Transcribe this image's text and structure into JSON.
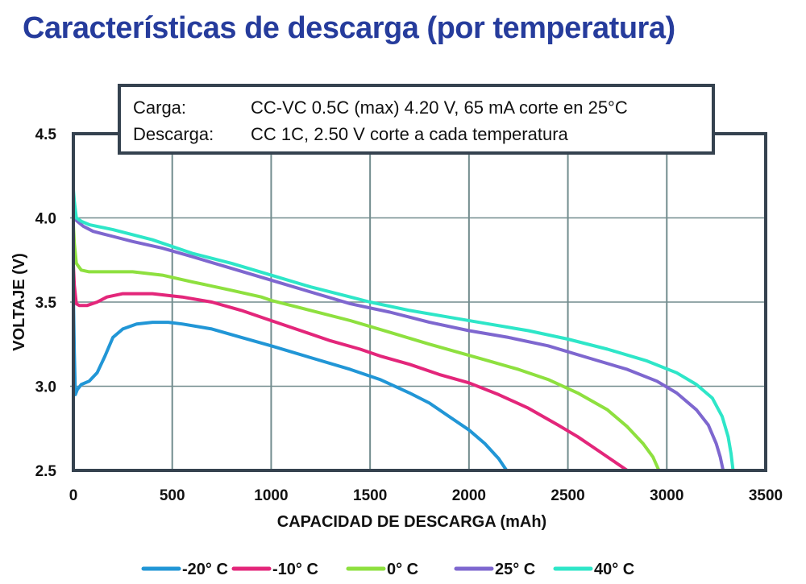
{
  "page_title": "Características de descarga (por temperatura)",
  "conditions": {
    "rows": [
      {
        "label": "Carga:",
        "value": "CC-VC 0.5C (max) 4.20 V, 65 mA corte en 25°C"
      },
      {
        "label": "Descarga:",
        "value": "CC 1C, 2.50 V corte a cada temperatura"
      }
    ]
  },
  "chart_data": {
    "type": "line",
    "title": "Características de descarga (por temperatura)",
    "xlabel": "CAPACIDAD DE DESCARGA (mAh)",
    "ylabel": "VOLTAJE (V)",
    "xlim": [
      0,
      3500
    ],
    "ylim": [
      2.5,
      4.5
    ],
    "xticks": [
      "0",
      "500",
      "1000",
      "1500",
      "2000",
      "2500",
      "3000",
      "3500"
    ],
    "xtick_values": [
      0,
      500,
      1000,
      1500,
      2000,
      2500,
      3000,
      3500
    ],
    "yticks": [
      "2.5",
      "3.0",
      "3.5",
      "4.0",
      "4.5"
    ],
    "ytick_values": [
      2.5,
      3.0,
      3.5,
      4.0,
      4.5
    ],
    "grid": true,
    "legend_position": "bottom",
    "series": [
      {
        "name": "-20° C",
        "color": "#2196d6",
        "points": [
          [
            0,
            3.55
          ],
          [
            5,
            3.2
          ],
          [
            10,
            2.95
          ],
          [
            20,
            2.98
          ],
          [
            40,
            3.01
          ],
          [
            80,
            3.03
          ],
          [
            120,
            3.08
          ],
          [
            160,
            3.18
          ],
          [
            200,
            3.29
          ],
          [
            250,
            3.34
          ],
          [
            320,
            3.37
          ],
          [
            400,
            3.38
          ],
          [
            480,
            3.38
          ],
          [
            550,
            3.37
          ],
          [
            700,
            3.34
          ],
          [
            850,
            3.29
          ],
          [
            1000,
            3.24
          ],
          [
            1200,
            3.17
          ],
          [
            1400,
            3.1
          ],
          [
            1550,
            3.04
          ],
          [
            1700,
            2.96
          ],
          [
            1800,
            2.9
          ],
          [
            1900,
            2.82
          ],
          [
            2000,
            2.74
          ],
          [
            2080,
            2.66
          ],
          [
            2150,
            2.57
          ],
          [
            2190,
            2.5
          ]
        ]
      },
      {
        "name": "-10° C",
        "color": "#e3267a",
        "points": [
          [
            0,
            3.72
          ],
          [
            5,
            3.6
          ],
          [
            15,
            3.49
          ],
          [
            30,
            3.48
          ],
          [
            70,
            3.48
          ],
          [
            120,
            3.5
          ],
          [
            170,
            3.53
          ],
          [
            250,
            3.55
          ],
          [
            400,
            3.55
          ],
          [
            550,
            3.53
          ],
          [
            700,
            3.5
          ],
          [
            850,
            3.45
          ],
          [
            1000,
            3.39
          ],
          [
            1150,
            3.33
          ],
          [
            1300,
            3.27
          ],
          [
            1450,
            3.22
          ],
          [
            1550,
            3.18
          ],
          [
            1700,
            3.13
          ],
          [
            1850,
            3.07
          ],
          [
            2000,
            3.02
          ],
          [
            2150,
            2.95
          ],
          [
            2300,
            2.87
          ],
          [
            2450,
            2.77
          ],
          [
            2550,
            2.7
          ],
          [
            2650,
            2.62
          ],
          [
            2750,
            2.54
          ],
          [
            2800,
            2.5
          ]
        ]
      },
      {
        "name": "0° C",
        "color": "#8ee03f",
        "points": [
          [
            0,
            3.96
          ],
          [
            5,
            3.85
          ],
          [
            15,
            3.73
          ],
          [
            40,
            3.69
          ],
          [
            80,
            3.68
          ],
          [
            200,
            3.68
          ],
          [
            300,
            3.68
          ],
          [
            450,
            3.66
          ],
          [
            600,
            3.62
          ],
          [
            800,
            3.57
          ],
          [
            950,
            3.53
          ],
          [
            1000,
            3.51
          ],
          [
            1200,
            3.45
          ],
          [
            1400,
            3.39
          ],
          [
            1600,
            3.32
          ],
          [
            1800,
            3.25
          ],
          [
            1950,
            3.2
          ],
          [
            2100,
            3.15
          ],
          [
            2250,
            3.1
          ],
          [
            2400,
            3.04
          ],
          [
            2550,
            2.96
          ],
          [
            2700,
            2.86
          ],
          [
            2800,
            2.76
          ],
          [
            2880,
            2.66
          ],
          [
            2930,
            2.58
          ],
          [
            2960,
            2.5
          ]
        ]
      },
      {
        "name": "25° C",
        "color": "#7e67cf",
        "points": [
          [
            0,
            4.0
          ],
          [
            20,
            3.98
          ],
          [
            50,
            3.95
          ],
          [
            100,
            3.92
          ],
          [
            200,
            3.89
          ],
          [
            300,
            3.86
          ],
          [
            450,
            3.82
          ],
          [
            600,
            3.77
          ],
          [
            800,
            3.7
          ],
          [
            1000,
            3.63
          ],
          [
            1200,
            3.56
          ],
          [
            1400,
            3.49
          ],
          [
            1600,
            3.44
          ],
          [
            1800,
            3.38
          ],
          [
            2000,
            3.33
          ],
          [
            2200,
            3.29
          ],
          [
            2400,
            3.24
          ],
          [
            2600,
            3.17
          ],
          [
            2800,
            3.1
          ],
          [
            2950,
            3.03
          ],
          [
            3050,
            2.96
          ],
          [
            3150,
            2.86
          ],
          [
            3210,
            2.77
          ],
          [
            3250,
            2.66
          ],
          [
            3270,
            2.58
          ],
          [
            3285,
            2.5
          ]
        ]
      },
      {
        "name": "40° C",
        "color": "#2ee6c8",
        "points": [
          [
            0,
            4.17
          ],
          [
            5,
            4.1
          ],
          [
            15,
            4.0
          ],
          [
            40,
            3.98
          ],
          [
            80,
            3.96
          ],
          [
            200,
            3.93
          ],
          [
            400,
            3.87
          ],
          [
            600,
            3.79
          ],
          [
            800,
            3.73
          ],
          [
            1000,
            3.66
          ],
          [
            1200,
            3.59
          ],
          [
            1400,
            3.53
          ],
          [
            1500,
            3.5
          ],
          [
            1700,
            3.45
          ],
          [
            1900,
            3.41
          ],
          [
            2100,
            3.37
          ],
          [
            2300,
            3.33
          ],
          [
            2500,
            3.28
          ],
          [
            2700,
            3.22
          ],
          [
            2900,
            3.15
          ],
          [
            3050,
            3.08
          ],
          [
            3150,
            3.01
          ],
          [
            3230,
            2.93
          ],
          [
            3280,
            2.82
          ],
          [
            3310,
            2.7
          ],
          [
            3325,
            2.6
          ],
          [
            3335,
            2.5
          ]
        ]
      }
    ]
  }
}
